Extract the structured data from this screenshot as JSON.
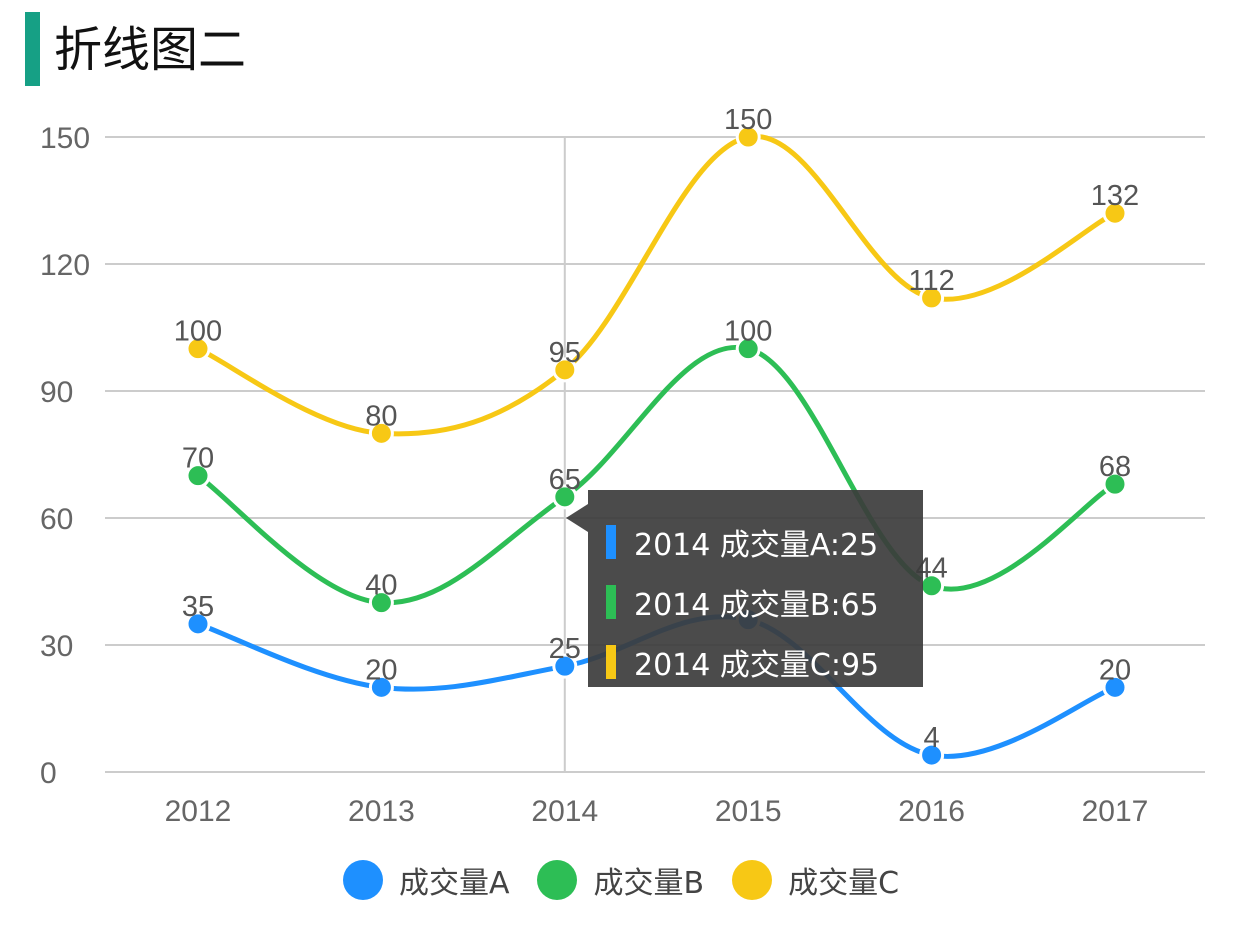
{
  "page": {
    "title": "折线图二"
  },
  "colors": {
    "title_bar": "#16a085",
    "series_a": "#1e90ff",
    "series_b": "#2dbe55",
    "series_c": "#f7c815",
    "grid": "#cccccc",
    "tooltip_bg": "#3c3c3c"
  },
  "chart_data": {
    "type": "line",
    "title": "折线图二",
    "categories": [
      "2012",
      "2013",
      "2014",
      "2015",
      "2016",
      "2017"
    ],
    "series": [
      {
        "name": "成交量A",
        "values": [
          35,
          20,
          25,
          36,
          4,
          20
        ],
        "labels": [
          "35",
          "20",
          "25",
          "",
          "4",
          "20"
        ]
      },
      {
        "name": "成交量B",
        "values": [
          70,
          40,
          65,
          100,
          44,
          68
        ],
        "labels": [
          "70",
          "40",
          "65",
          "100",
          "44",
          "68"
        ]
      },
      {
        "name": "成交量C",
        "values": [
          100,
          80,
          95,
          150,
          112,
          132
        ],
        "labels": [
          "100",
          "80",
          "95",
          "150",
          "112",
          "132"
        ]
      }
    ],
    "yticks": [
      "0",
      "30",
      "60",
      "90",
      "120",
      "150"
    ],
    "ylim": [
      0,
      150
    ],
    "grid": true,
    "smooth": true,
    "legend_position": "bottom",
    "highlight_category": "2014"
  },
  "tooltip": {
    "rows": [
      {
        "text": "2014 成交量A:25"
      },
      {
        "text": "2014 成交量B:65"
      },
      {
        "text": "2014 成交量C:95"
      }
    ]
  },
  "legend": {
    "items": [
      {
        "label": "成交量A"
      },
      {
        "label": "成交量B"
      },
      {
        "label": "成交量C"
      }
    ]
  }
}
